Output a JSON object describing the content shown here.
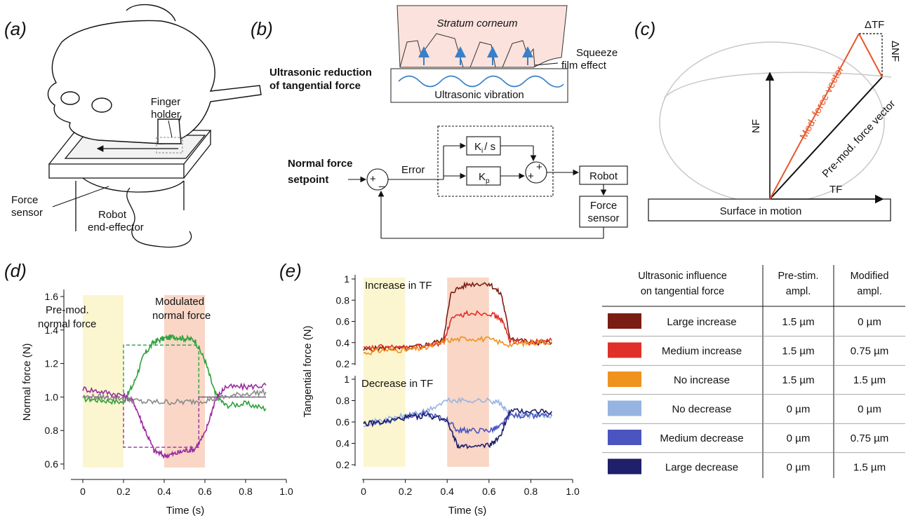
{
  "panels": {
    "a": {
      "tag": "(a)",
      "finger_holder": [
        "Finger",
        "holder"
      ],
      "force_sensor": [
        "Force",
        "sensor"
      ],
      "robot": [
        "Robot",
        "end-effector"
      ]
    },
    "b": {
      "tag": "(b)",
      "stratum": "Stratum corneum",
      "squeeze": [
        "Squeeze",
        "film effect"
      ],
      "reduction": [
        "Ultrasonic reduction",
        "of tangential force"
      ],
      "vibration": "Ultrasonic vibration",
      "setpoint": [
        "Normal force",
        "setpoint"
      ],
      "error": "Error",
      "ki": "K",
      "ki_sub": "i",
      "ki_tail": "/ s",
      "kp": "K",
      "kp_sub": "p",
      "robot": "Robot",
      "force_sensor": [
        "Force",
        "sensor"
      ],
      "plus": "+",
      "minus": "_"
    },
    "c": {
      "tag": "(c)",
      "dtf": "ΔTF",
      "dnf": "ΔNF",
      "nf": "NF",
      "tf": "TF",
      "mod": "Mod. force vector",
      "premod": "Pre-mod. force vector",
      "surface": "Surface in motion",
      "colors": {
        "mod": "#e8562a",
        "premod": "#111111",
        "ellipse": "#c8c8c8"
      }
    },
    "d": {
      "tag": "(d)",
      "premod": [
        "Pre-mod.",
        "normal force"
      ],
      "modulated": [
        "Modulated",
        "normal force"
      ]
    },
    "e": {
      "tag": "(e)",
      "increase": "Increase in TF",
      "decrease": "Decrease in TF"
    }
  },
  "chart_data": [
    {
      "id": "d",
      "type": "line",
      "xlabel": "Time (s)",
      "ylabel": "Normal force (N)",
      "xlim": [
        0,
        1.0
      ],
      "ylim": [
        0.6,
        1.6
      ],
      "xticks": [
        "0",
        "0.2",
        "0.4",
        "0.6",
        "0.8",
        "1.0"
      ],
      "yticks": [
        "0.6",
        "0.8",
        "1.0",
        "1.2",
        "1.4",
        "1.6"
      ],
      "shaded": [
        {
          "from": 0,
          "to": 0.2,
          "color": "#fbf6cf"
        },
        {
          "from": 0.4,
          "to": 0.6,
          "color": "#f9d6c6"
        }
      ],
      "series": [
        {
          "color": "#2ca23a",
          "x": [
            0,
            0.1,
            0.2,
            0.25,
            0.3,
            0.35,
            0.4,
            0.45,
            0.5,
            0.55,
            0.6,
            0.65,
            0.7,
            0.8,
            0.9
          ],
          "y": [
            0.99,
            0.98,
            0.97,
            1.08,
            1.25,
            1.33,
            1.35,
            1.36,
            1.35,
            1.34,
            1.22,
            1.02,
            0.95,
            0.96,
            0.93
          ]
        },
        {
          "color": "#9a2ca0",
          "x": [
            0,
            0.1,
            0.2,
            0.25,
            0.3,
            0.35,
            0.4,
            0.45,
            0.5,
            0.55,
            0.6,
            0.65,
            0.7,
            0.8,
            0.9
          ],
          "y": [
            1.05,
            1.03,
            1.01,
            0.97,
            0.82,
            0.68,
            0.65,
            0.66,
            0.68,
            0.69,
            0.78,
            0.98,
            1.06,
            1.06,
            1.07
          ]
        },
        {
          "color": "#8a8a8a",
          "x": [
            0,
            0.1,
            0.2,
            0.3,
            0.4,
            0.5,
            0.6,
            0.7,
            0.8,
            0.9
          ],
          "y": [
            1.0,
            1.0,
            0.99,
            0.97,
            0.97,
            0.97,
            0.98,
            1.0,
            1.02,
            1.03
          ]
        }
      ],
      "targets": [
        {
          "color": "#2ca23a",
          "x": [
            0,
            0.2,
            0.2,
            0.57,
            0.57,
            0.9
          ],
          "y": [
            1.0,
            1.0,
            1.31,
            1.31,
            1.0,
            1.0
          ]
        },
        {
          "color": "#9a2ca0",
          "x": [
            0,
            0.2,
            0.2,
            0.57,
            0.57,
            0.9
          ],
          "y": [
            1.0,
            1.0,
            0.7,
            0.7,
            1.0,
            1.0
          ]
        }
      ]
    },
    {
      "id": "e_top",
      "type": "line",
      "ylabel": "Tangential force (N)",
      "xlim": [
        0,
        1.0
      ],
      "ylim": [
        0.2,
        1.0
      ],
      "yticks": [
        "0.2",
        "0.4",
        "0.6",
        "0.8",
        "1"
      ],
      "series": [
        {
          "color": "#7a1d12",
          "x": [
            0,
            0.1,
            0.2,
            0.3,
            0.38,
            0.42,
            0.5,
            0.6,
            0.66,
            0.7,
            0.8,
            0.9
          ],
          "y": [
            0.33,
            0.35,
            0.34,
            0.38,
            0.42,
            0.88,
            0.95,
            0.96,
            0.85,
            0.45,
            0.4,
            0.4
          ]
        },
        {
          "color": "#e0302a",
          "x": [
            0,
            0.1,
            0.2,
            0.3,
            0.38,
            0.42,
            0.5,
            0.6,
            0.66,
            0.7,
            0.8,
            0.9
          ],
          "y": [
            0.34,
            0.36,
            0.35,
            0.37,
            0.4,
            0.62,
            0.68,
            0.68,
            0.62,
            0.42,
            0.4,
            0.42
          ]
        },
        {
          "color": "#f0921e",
          "x": [
            0,
            0.1,
            0.2,
            0.3,
            0.4,
            0.5,
            0.6,
            0.7,
            0.8,
            0.9
          ],
          "y": [
            0.3,
            0.33,
            0.33,
            0.35,
            0.42,
            0.44,
            0.43,
            0.38,
            0.4,
            0.41
          ]
        }
      ]
    },
    {
      "id": "e_bottom",
      "type": "line",
      "xlabel": "Time (s)",
      "xlim": [
        0,
        1.0
      ],
      "ylim": [
        0.2,
        1.0
      ],
      "xticks": [
        "0",
        "0.2",
        "0.4",
        "0.6",
        "0.8",
        "1.0"
      ],
      "yticks": [
        "0.2",
        "0.4",
        "0.6",
        "0.8",
        "1"
      ],
      "shaded": [
        {
          "from": 0,
          "to": 0.2,
          "color": "#fbf6cf"
        },
        {
          "from": 0.4,
          "to": 0.6,
          "color": "#f9d6c6"
        }
      ],
      "series": [
        {
          "color": "#95b4e0",
          "x": [
            0,
            0.1,
            0.2,
            0.3,
            0.4,
            0.5,
            0.6,
            0.65,
            0.7,
            0.8,
            0.9
          ],
          "y": [
            0.58,
            0.62,
            0.66,
            0.7,
            0.8,
            0.8,
            0.8,
            0.78,
            0.66,
            0.66,
            0.66
          ]
        },
        {
          "color": "#4a55c0",
          "x": [
            0,
            0.1,
            0.2,
            0.3,
            0.4,
            0.45,
            0.5,
            0.6,
            0.65,
            0.7,
            0.8,
            0.9
          ],
          "y": [
            0.58,
            0.6,
            0.65,
            0.68,
            0.62,
            0.52,
            0.52,
            0.52,
            0.55,
            0.66,
            0.66,
            0.66
          ]
        },
        {
          "color": "#1f1f6b",
          "x": [
            0,
            0.1,
            0.2,
            0.3,
            0.4,
            0.45,
            0.5,
            0.6,
            0.65,
            0.7,
            0.8,
            0.9
          ],
          "y": [
            0.58,
            0.6,
            0.64,
            0.66,
            0.62,
            0.38,
            0.36,
            0.38,
            0.45,
            0.7,
            0.7,
            0.7
          ]
        }
      ]
    },
    {
      "id": "table",
      "type": "table",
      "headers": [
        [
          "Ultrasonic influence",
          "on tangential force"
        ],
        [
          "Pre-stim.",
          "ampl."
        ],
        [
          "Modified",
          "ampl."
        ]
      ],
      "rows": [
        {
          "label": "Large increase",
          "color": "#7a1d12",
          "pre": "1.5 µm",
          "mod": "0 µm"
        },
        {
          "label": "Medium increase",
          "color": "#e0302a",
          "pre": "1.5 µm",
          "mod": "0.75 µm"
        },
        {
          "label": "No increase",
          "color": "#f0921e",
          "pre": "1.5 µm",
          "mod": "1.5 µm"
        },
        {
          "label": "No decrease",
          "color": "#95b4e0",
          "pre": "0 µm",
          "mod": "0 µm"
        },
        {
          "label": "Medium decrease",
          "color": "#4a55c0",
          "pre": "0 µm",
          "mod": "0.75 µm"
        },
        {
          "label": "Large decrease",
          "color": "#1f1f6b",
          "pre": "0 µm",
          "mod": "1.5 µm"
        }
      ]
    }
  ]
}
